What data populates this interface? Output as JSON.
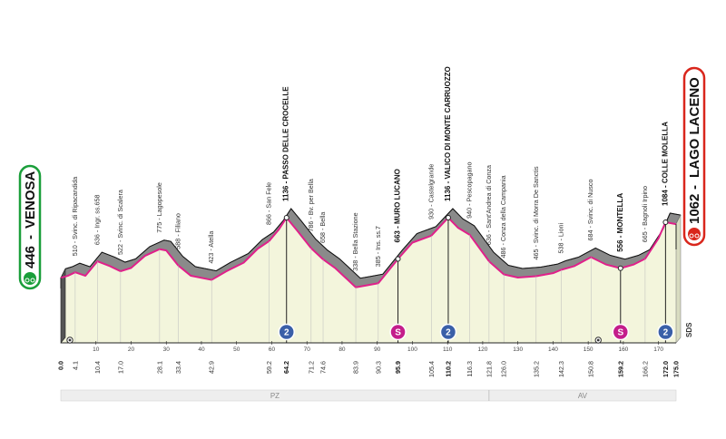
{
  "chart_data": {
    "type": "area",
    "start": {
      "name": "VENOSA",
      "altitude": 446,
      "km": 0
    },
    "finish": {
      "name": "LAGO LACENO",
      "altitude": 1062,
      "km": 175
    },
    "xlim": [
      0,
      175
    ],
    "ylim": [
      200,
      1300
    ],
    "x_ticks": [
      10,
      20,
      30,
      40,
      50,
      60,
      70,
      80,
      90,
      100,
      110,
      120,
      130,
      140,
      150,
      160,
      170
    ],
    "profile": [
      [
        0,
        446
      ],
      [
        2,
        470
      ],
      [
        4.1,
        510
      ],
      [
        7,
        470
      ],
      [
        10.4,
        636
      ],
      [
        14,
        580
      ],
      [
        17,
        522
      ],
      [
        20,
        560
      ],
      [
        24,
        700
      ],
      [
        28.1,
        775
      ],
      [
        30,
        760
      ],
      [
        33.4,
        588
      ],
      [
        37,
        470
      ],
      [
        42.9,
        423
      ],
      [
        47,
        520
      ],
      [
        52,
        620
      ],
      [
        56,
        780
      ],
      [
        59.2,
        866
      ],
      [
        62,
        1000
      ],
      [
        64.2,
        1136
      ],
      [
        67,
        1000
      ],
      [
        71.2,
        786
      ],
      [
        74.6,
        658
      ],
      [
        78,
        560
      ],
      [
        83.9,
        338
      ],
      [
        87,
        360
      ],
      [
        90.3,
        385
      ],
      [
        95.9,
        663
      ],
      [
        100,
        850
      ],
      [
        105.4,
        930
      ],
      [
        110.2,
        1136
      ],
      [
        113,
        1020
      ],
      [
        116.3,
        940
      ],
      [
        121.8,
        636
      ],
      [
        126,
        486
      ],
      [
        130,
        450
      ],
      [
        135.2,
        465
      ],
      [
        140,
        500
      ],
      [
        142.3,
        538
      ],
      [
        146,
        580
      ],
      [
        150.8,
        684
      ],
      [
        155,
        600
      ],
      [
        159.2,
        556
      ],
      [
        163,
        600
      ],
      [
        166.2,
        665
      ],
      [
        170,
        900
      ],
      [
        172,
        1084
      ],
      [
        175,
        1062
      ]
    ],
    "places": [
      {
        "km": "4.1",
        "label": "510 - Svinc. di Ripacandida"
      },
      {
        "km": "10.4",
        "label": "636 - Ingr. ss.658"
      },
      {
        "km": "17.0",
        "label": "522 - Svinc. di Scalera"
      },
      {
        "km": "28.1",
        "label": "775 - Lagopesole"
      },
      {
        "km": "33.4",
        "label": "588 - Filiano"
      },
      {
        "km": "42.9",
        "label": "423 - Atella"
      },
      {
        "km": "59.2",
        "label": "866 - San Fele"
      },
      {
        "km": "64.2",
        "label": "1136 - PASSO DELLE CROCELLE",
        "bold": true
      },
      {
        "km": "71.2",
        "label": "786 - Bv. per Bella"
      },
      {
        "km": "74.6",
        "label": "658 - Bella"
      },
      {
        "km": "83.9",
        "label": "338 - Bella Stazione"
      },
      {
        "km": "90.3",
        "label": "385 - Ins. ss.7"
      },
      {
        "km": "95.9",
        "label": "663 - MURO LUCANO",
        "bold": true
      },
      {
        "km": "105.4",
        "label": "930 - Castelgrande"
      },
      {
        "km": "110.2",
        "label": "1136 - VALICO DI MONTE CARRUOZZO",
        "bold": true
      },
      {
        "km": "116.3",
        "label": "940 - Pescopagano"
      },
      {
        "km": "121.8",
        "label": "636 - Sant'Andrea di Conza"
      },
      {
        "km": "126.0",
        "label": "486 - Conza della Campania"
      },
      {
        "km": "135.2",
        "label": "465 - Svinc. di Morra De Sanctis"
      },
      {
        "km": "142.3",
        "label": "538 - Lioni"
      },
      {
        "km": "150.8",
        "label": "684 - Svinc. di Nusco"
      },
      {
        "km": "159.2",
        "label": "556 - MONTELLA",
        "bold": true
      },
      {
        "km": "166.2",
        "label": "665 - Bagnoli Irpino"
      },
      {
        "km": "172.0",
        "label": "1084 - COLLE MOLELLA",
        "bold": true
      }
    ],
    "kms_start": [
      {
        "km": "0.0",
        "bold": true
      }
    ],
    "kms_end": [
      {
        "km": "175.0",
        "bold": true
      }
    ],
    "markers": [
      {
        "km": 64.2,
        "type": "kom",
        "symbol": "2",
        "color": "#3a5fa8"
      },
      {
        "km": 95.9,
        "type": "sprint",
        "symbol": "S",
        "color": "#c41d8b"
      },
      {
        "km": 110.2,
        "type": "kom",
        "symbol": "2",
        "color": "#3a5fa8"
      },
      {
        "km": 159.2,
        "type": "sprint",
        "symbol": "S",
        "color": "#c41d8b"
      },
      {
        "km": 172.0,
        "type": "kom",
        "symbol": "2",
        "color": "#3a5fa8"
      }
    ],
    "provinces": [
      {
        "label": "PZ",
        "from": 0,
        "to": 121.8
      },
      {
        "label": "AV",
        "from": 121.8,
        "to": 175
      }
    ],
    "brand": "SDS",
    "colors": {
      "route": "#e0208a",
      "terrain": "#8a8a8a",
      "plane": "#f3f5dc",
      "start_green": "#1a9e3a",
      "finish_red": "#d9261c"
    }
  }
}
